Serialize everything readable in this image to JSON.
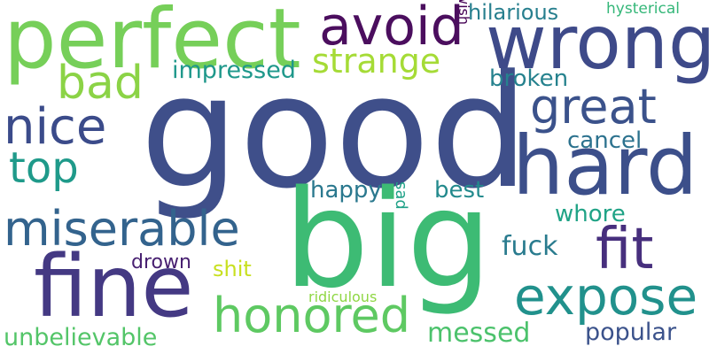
{
  "words": {
    "good": {
      "text": "good",
      "color": "#3f4f8a"
    },
    "big": {
      "text": "big",
      "color": "#3dbb74"
    },
    "perfect": {
      "text": "perfect",
      "color": "#76cf59"
    },
    "wrong": {
      "text": "wrong",
      "color": "#3e4a89"
    },
    "hard": {
      "text": "hard",
      "color": "#3c4f8a"
    },
    "fine": {
      "text": "fine",
      "color": "#443983"
    },
    "avoid": {
      "text": "avoid",
      "color": "#4b0e5e"
    },
    "expose": {
      "text": "expose",
      "color": "#21918c"
    },
    "honored": {
      "text": "honored",
      "color": "#5ec962"
    },
    "miserable": {
      "text": "miserable",
      "color": "#33638d"
    },
    "great": {
      "text": "great",
      "color": "#3b528b"
    },
    "nice": {
      "text": "nice",
      "color": "#3b4b8a"
    },
    "bad": {
      "text": "bad",
      "color": "#8bd346"
    },
    "fit": {
      "text": "fit",
      "color": "#472f7d"
    },
    "top": {
      "text": "top",
      "color": "#1f9a8a"
    },
    "strange": {
      "text": "strange",
      "color": "#a5db36"
    },
    "impressed": {
      "text": "impressed",
      "color": "#1f988b"
    },
    "unbelievable": {
      "text": "unbelievable",
      "color": "#53c568"
    },
    "messed": {
      "text": "messed",
      "color": "#4cc26c"
    },
    "popular": {
      "text": "popular",
      "color": "#3b528b"
    },
    "hilarious": {
      "text": "hilarious",
      "color": "#277f8e"
    },
    "broken": {
      "text": "broken",
      "color": "#26828e"
    },
    "cancel": {
      "text": "cancel",
      "color": "#2c728e"
    },
    "best": {
      "text": "best",
      "color": "#238a8d"
    },
    "happy": {
      "text": "happy",
      "color": "#2a788e"
    },
    "whore": {
      "text": "whore",
      "color": "#20a386"
    },
    "fuck": {
      "text": "fuck",
      "color": "#297b8e"
    },
    "shit": {
      "text": "shit",
      "color": "#c8e020"
    },
    "drown": {
      "text": "drown",
      "color": "#482071"
    },
    "hysterical": {
      "text": "hysterical",
      "color": "#35b779"
    },
    "ridiculous": {
      "text": "ridiculous",
      "color": "#8fd744"
    },
    "wish": {
      "text": "wish",
      "color": "#440154"
    },
    "sad": {
      "text": "sad",
      "color": "#1fa187"
    }
  }
}
